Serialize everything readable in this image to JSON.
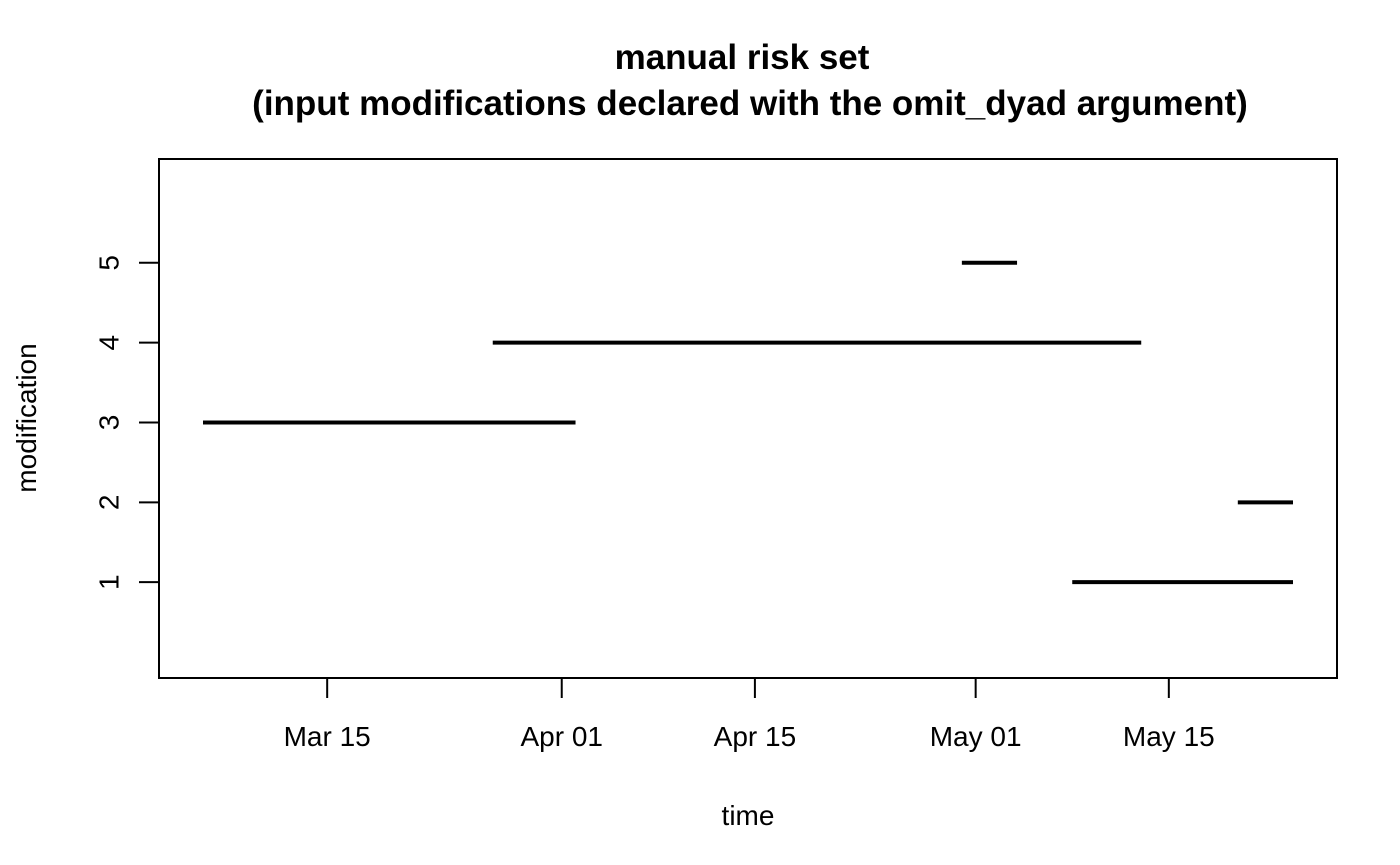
{
  "chart_data": {
    "type": "line",
    "title": "manual risk set",
    "subtitle": "(input modifications declared with the omit_dyad argument)",
    "xlabel": "time",
    "ylabel": "modification",
    "x_scale": "date",
    "xlim": [
      "2020-03-06",
      "2020-05-24"
    ],
    "ylim": [
      -0.2,
      6.3
    ],
    "x_ticks": [
      {
        "date": "2020-03-15",
        "label": "Mar 15"
      },
      {
        "date": "2020-04-01",
        "label": "Apr 01"
      },
      {
        "date": "2020-04-15",
        "label": "Apr 15"
      },
      {
        "date": "2020-05-01",
        "label": "May 01"
      },
      {
        "date": "2020-05-15",
        "label": "May 15"
      }
    ],
    "y_ticks": [
      1,
      2,
      3,
      4,
      5
    ],
    "grid": false,
    "line_color": "#000000",
    "segments": [
      {
        "modification": 3,
        "start": "2020-03-06",
        "end": "2020-04-02"
      },
      {
        "modification": 4,
        "start": "2020-03-27",
        "end": "2020-05-13"
      },
      {
        "modification": 5,
        "start": "2020-04-30",
        "end": "2020-05-04"
      },
      {
        "modification": 1,
        "start": "2020-05-08",
        "end": "2020-05-24"
      },
      {
        "modification": 2,
        "start": "2020-05-20",
        "end": "2020-05-24"
      }
    ]
  }
}
